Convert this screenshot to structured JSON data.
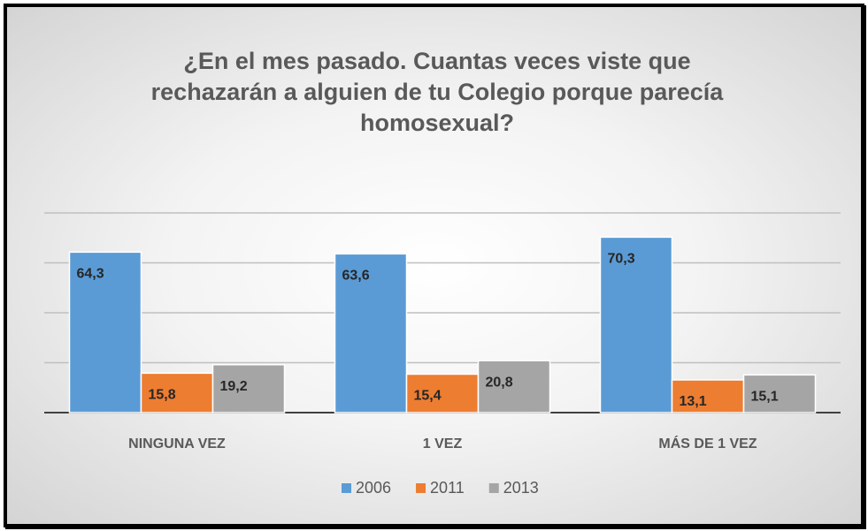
{
  "chart_data": {
    "type": "bar",
    "title": "¿En el mes pasado. Cuantas veces viste que rechazarán a alguien de tu Colegio porque parecía homosexual?",
    "categories": [
      "NINGUNA VEZ",
      "1 VEZ",
      "MÁS DE 1 VEZ"
    ],
    "series": [
      {
        "name": "2006",
        "color": "#5b9bd5",
        "values": [
          64.3,
          63.6,
          70.3
        ],
        "value_labels": [
          "64,3",
          "63,6",
          "70,3"
        ]
      },
      {
        "name": "2011",
        "color": "#ed7d31",
        "values": [
          15.8,
          15.4,
          13.1
        ],
        "value_labels": [
          "15,8",
          "15,4",
          "13,1"
        ]
      },
      {
        "name": "2013",
        "color": "#a5a5a5",
        "values": [
          19.2,
          20.8,
          15.1
        ],
        "value_labels": [
          "19,2",
          "20,8",
          "15,1"
        ]
      }
    ],
    "ylim": [
      0,
      80
    ],
    "yticks": [
      0,
      20,
      40,
      60,
      80
    ],
    "grid": true,
    "legend": "bottom"
  }
}
